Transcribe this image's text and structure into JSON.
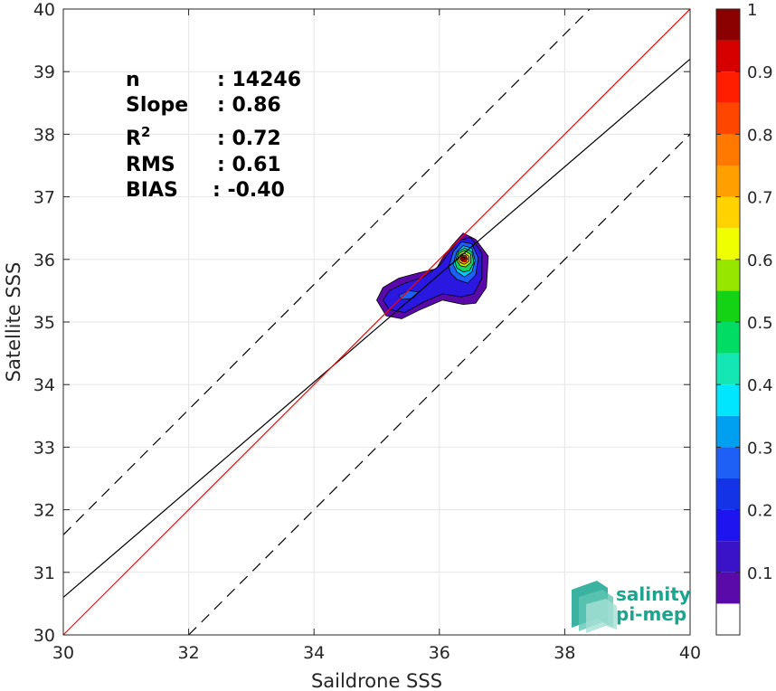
{
  "chart_data": {
    "type": "scatter",
    "subtype": "density-contour",
    "xlabel": "Saildrone SSS",
    "ylabel": "Satellite SSS",
    "xlim": [
      30,
      40
    ],
    "ylim": [
      30,
      40
    ],
    "x_ticks": [
      30,
      32,
      34,
      36,
      38,
      40
    ],
    "y_ticks": [
      30,
      31,
      32,
      33,
      34,
      35,
      36,
      37,
      38,
      39,
      40
    ],
    "grid": true,
    "stats": [
      {
        "label": "n",
        "sep": ": ",
        "value": "14246"
      },
      {
        "label": "Slope",
        "sep": ": ",
        "value": "0.86"
      },
      {
        "label": "R",
        "sup": "2",
        "sep": ": ",
        "value": "0.72"
      },
      {
        "label": "RMS",
        "sep": ": ",
        "value": "0.61"
      },
      {
        "label": "BIAS",
        "sep": ": ",
        "value": "-0.40"
      }
    ],
    "lines": {
      "identity": {
        "slope": 1.0,
        "intercept": 0.0,
        "color": "#ff0000",
        "style": "solid"
      },
      "fit": {
        "slope": 0.86,
        "intercept": 4.8,
        "color": "#000000",
        "style": "solid"
      },
      "upper_bound": {
        "slope": 1.0,
        "intercept": 1.6,
        "color": "#000000",
        "style": "dashed"
      },
      "lower_bound": {
        "slope": 1.0,
        "intercept": -2.0,
        "color": "#000000",
        "style": "dashed"
      }
    },
    "density_contours": [
      {
        "level": 0.05,
        "color": "#5a0aa8",
        "points": [
          [
            35.0,
            35.35
          ],
          [
            35.1,
            35.55
          ],
          [
            35.35,
            35.7
          ],
          [
            35.65,
            35.78
          ],
          [
            35.95,
            35.85
          ],
          [
            36.05,
            36.02
          ],
          [
            36.2,
            36.22
          ],
          [
            36.38,
            36.42
          ],
          [
            36.58,
            36.32
          ],
          [
            36.78,
            36.05
          ],
          [
            36.75,
            35.55
          ],
          [
            36.58,
            35.3
          ],
          [
            36.38,
            35.28
          ],
          [
            36.05,
            35.35
          ],
          [
            35.7,
            35.2
          ],
          [
            35.4,
            35.05
          ],
          [
            35.15,
            35.1
          ]
        ]
      },
      {
        "level": 0.15,
        "color": "#2a18e0",
        "points": [
          [
            35.1,
            35.35
          ],
          [
            35.2,
            35.5
          ],
          [
            35.45,
            35.62
          ],
          [
            35.75,
            35.72
          ],
          [
            36.0,
            35.9
          ],
          [
            36.15,
            36.1
          ],
          [
            36.3,
            36.3
          ],
          [
            36.5,
            36.35
          ],
          [
            36.68,
            36.1
          ],
          [
            36.68,
            35.7
          ],
          [
            36.55,
            35.45
          ],
          [
            36.35,
            35.4
          ],
          [
            36.05,
            35.45
          ],
          [
            35.75,
            35.32
          ],
          [
            35.45,
            35.15
          ],
          [
            35.2,
            35.2
          ]
        ]
      },
      {
        "level": 0.25,
        "color": "#1e5ff5",
        "points": [
          [
            36.15,
            35.88
          ],
          [
            36.22,
            36.12
          ],
          [
            36.35,
            36.28
          ],
          [
            36.52,
            36.25
          ],
          [
            36.62,
            36.02
          ],
          [
            36.58,
            35.75
          ],
          [
            36.45,
            35.62
          ],
          [
            36.28,
            35.68
          ],
          [
            36.18,
            35.78
          ]
        ]
      },
      {
        "level": 0.35,
        "color": "#00c8f0",
        "points": [
          [
            36.22,
            35.92
          ],
          [
            36.28,
            36.12
          ],
          [
            36.38,
            36.22
          ],
          [
            36.52,
            36.18
          ],
          [
            36.57,
            35.98
          ],
          [
            36.52,
            35.8
          ],
          [
            36.4,
            35.72
          ],
          [
            36.28,
            35.8
          ]
        ]
      },
      {
        "level": 0.45,
        "color": "#14d264",
        "points": [
          [
            36.25,
            35.95
          ],
          [
            36.3,
            36.12
          ],
          [
            36.4,
            36.18
          ],
          [
            36.52,
            36.12
          ],
          [
            36.55,
            35.95
          ],
          [
            36.48,
            35.82
          ],
          [
            36.38,
            35.8
          ],
          [
            36.28,
            35.86
          ]
        ]
      },
      {
        "level": 0.6,
        "color": "#c8f000",
        "points": [
          [
            36.28,
            35.98
          ],
          [
            36.32,
            36.1
          ],
          [
            36.4,
            36.14
          ],
          [
            36.5,
            36.08
          ],
          [
            36.5,
            35.95
          ],
          [
            36.42,
            35.88
          ],
          [
            36.33,
            35.9
          ]
        ]
      },
      {
        "level": 0.7,
        "color": "#ffa800",
        "points": [
          [
            36.3,
            36.0
          ],
          [
            36.34,
            36.08
          ],
          [
            36.4,
            36.1
          ],
          [
            36.47,
            36.05
          ],
          [
            36.47,
            35.97
          ],
          [
            36.4,
            35.92
          ],
          [
            36.33,
            35.95
          ]
        ]
      },
      {
        "level": 0.9,
        "color": "#e60000",
        "points": [
          [
            36.33,
            36.01
          ],
          [
            36.37,
            36.06
          ],
          [
            36.42,
            36.06
          ],
          [
            36.45,
            36.01
          ],
          [
            36.42,
            35.96
          ],
          [
            36.36,
            35.97
          ]
        ]
      },
      {
        "level": 1.0,
        "color": "#8b0000",
        "points": [
          [
            36.36,
            36.02
          ],
          [
            36.39,
            36.04
          ],
          [
            36.42,
            36.02
          ],
          [
            36.4,
            35.99
          ],
          [
            36.37,
            35.99
          ]
        ]
      }
    ],
    "secondary_blob": {
      "level": 0.25,
      "color": "#1e5ff5",
      "points": [
        [
          35.35,
          35.42
        ],
        [
          35.5,
          35.5
        ],
        [
          35.68,
          35.48
        ],
        [
          35.58,
          35.38
        ],
        [
          35.4,
          35.36
        ]
      ]
    },
    "colorbar": {
      "range": [
        0,
        1
      ],
      "ticks": [
        0.1,
        0.2,
        0.3,
        0.4,
        0.5,
        0.6,
        0.7,
        0.8,
        0.9,
        1
      ],
      "tick_labels": [
        "0.1",
        "0.2",
        "0.3",
        "0.4",
        "0.5",
        "0.6",
        "0.7",
        "0.8",
        "0.9",
        "1"
      ],
      "bands": [
        {
          "from": 0.0,
          "to": 0.05,
          "color": "#ffffff"
        },
        {
          "from": 0.05,
          "to": 0.1,
          "color": "#5a0aa8"
        },
        {
          "from": 0.1,
          "to": 0.15,
          "color": "#3a12c8"
        },
        {
          "from": 0.15,
          "to": 0.2,
          "color": "#1e14f0"
        },
        {
          "from": 0.2,
          "to": 0.25,
          "color": "#1432e6"
        },
        {
          "from": 0.25,
          "to": 0.3,
          "color": "#1e5ff5"
        },
        {
          "from": 0.3,
          "to": 0.35,
          "color": "#00a0f0"
        },
        {
          "from": 0.35,
          "to": 0.4,
          "color": "#00e6ff"
        },
        {
          "from": 0.4,
          "to": 0.45,
          "color": "#14e6b4"
        },
        {
          "from": 0.45,
          "to": 0.5,
          "color": "#00dc64"
        },
        {
          "from": 0.5,
          "to": 0.55,
          "color": "#14d214"
        },
        {
          "from": 0.55,
          "to": 0.6,
          "color": "#96e600"
        },
        {
          "from": 0.6,
          "to": 0.65,
          "color": "#f0ff00"
        },
        {
          "from": 0.65,
          "to": 0.7,
          "color": "#ffd200"
        },
        {
          "from": 0.7,
          "to": 0.75,
          "color": "#ffa000"
        },
        {
          "from": 0.75,
          "to": 0.8,
          "color": "#ff7800"
        },
        {
          "from": 0.8,
          "to": 0.85,
          "color": "#ff4600"
        },
        {
          "from": 0.85,
          "to": 0.9,
          "color": "#ff1e00"
        },
        {
          "from": 0.9,
          "to": 0.95,
          "color": "#d70000"
        },
        {
          "from": 0.95,
          "to": 1.0,
          "color": "#8b0000"
        }
      ]
    },
    "logo": {
      "line1": "salinity",
      "line2": "pi-mep",
      "color": "#1aa58f"
    }
  }
}
